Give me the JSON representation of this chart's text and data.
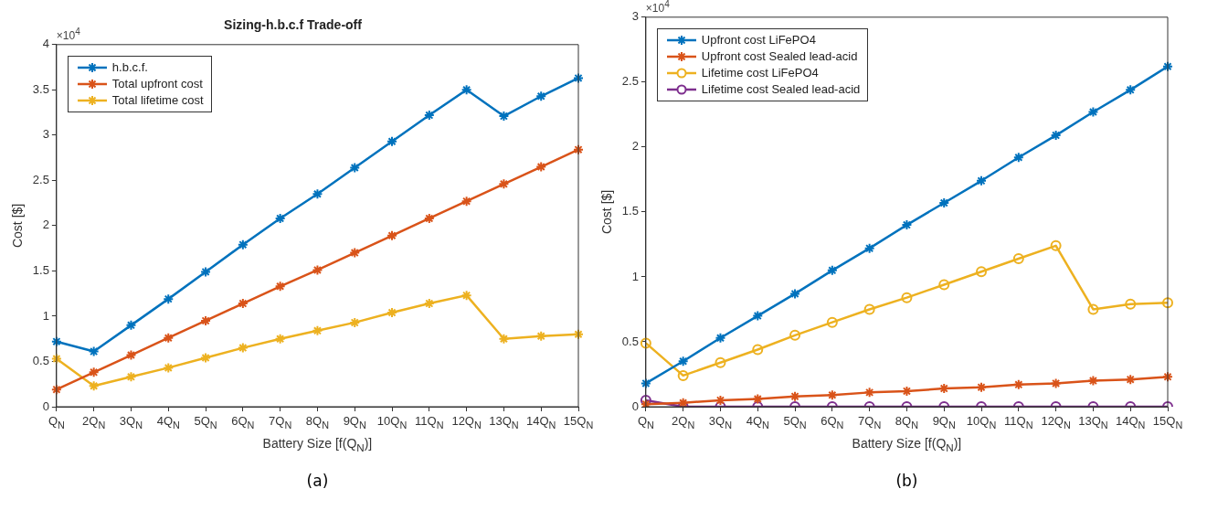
{
  "chart_data": [
    {
      "type": "line",
      "title": "Sizing-h.b.c.f Trade-off",
      "xlabel": "Battery Size [f(Q$_{N}$)]",
      "ylabel": "Cost [$]",
      "categories": [
        "Q$_{N}$",
        "2Q$_{N}$",
        "3Q$_{N}$",
        "4Q$_{N}$",
        "5Q$_{N}$",
        "6Q$_{N}$",
        "7Q$_{N}$",
        "8Q$_{N}$",
        "9Q$_{N}$",
        "10Q$_{N}$",
        "11Q$_{N}$",
        "12Q$_{N}$",
        "13Q$_{N}$",
        "14Q$_{N}$",
        "15Q$_{N}$"
      ],
      "series": [
        {
          "name": "h.b.c.f.",
          "color": "#0072bd",
          "marker": "cross",
          "values": [
            0.72,
            0.61,
            0.9,
            1.19,
            1.49,
            1.79,
            2.08,
            2.35,
            2.64,
            2.93,
            3.22,
            3.5,
            3.21,
            3.43,
            3.63
          ]
        },
        {
          "name": "Total upfront cost",
          "color": "#d95319",
          "marker": "cross",
          "values": [
            0.19,
            0.38,
            0.57,
            0.76,
            0.95,
            1.14,
            1.33,
            1.51,
            1.7,
            1.89,
            2.08,
            2.27,
            2.46,
            2.65,
            2.84
          ]
        },
        {
          "name": "Total lifetime cost",
          "color": "#edb120",
          "marker": "cross",
          "values": [
            0.53,
            0.23,
            0.33,
            0.43,
            0.54,
            0.65,
            0.75,
            0.84,
            0.93,
            1.04,
            1.14,
            1.23,
            0.75,
            0.78,
            0.8
          ]
        }
      ],
      "ylim": [
        0,
        4
      ],
      "yticks": [
        0,
        0.5,
        1,
        1.5,
        2,
        2.5,
        3,
        3.5,
        4
      ],
      "grid": false,
      "legend": "top left",
      "line_style": "solid",
      "annotations": [
        "×10$^{4}$",
        "(a)"
      ]
    },
    {
      "type": "line",
      "xlabel": "Battery Size [f(Q$_{N}$)]",
      "ylabel": "Cost [$]",
      "categories": [
        "Q$_{N}$",
        "2Q$_{N}$",
        "3Q$_{N}$",
        "4Q$_{N}$",
        "5Q$_{N}$",
        "6Q$_{N}$",
        "7Q$_{N}$",
        "8Q$_{N}$",
        "9Q$_{N}$",
        "10Q$_{N}$",
        "11Q$_{N}$",
        "12Q$_{N}$",
        "13Q$_{N}$",
        "14Q$_{N}$",
        "15Q$_{N}$"
      ],
      "series": [
        {
          "name": "Upfront cost LiFePO4",
          "color": "#0072bd",
          "marker": "cross",
          "values": [
            0.18,
            0.35,
            0.53,
            0.7,
            0.87,
            1.05,
            1.22,
            1.4,
            1.57,
            1.74,
            1.92,
            2.09,
            2.27,
            2.44,
            2.62
          ]
        },
        {
          "name": "Upfront cost Sealed lead-acid",
          "color": "#d95319",
          "marker": "cross",
          "values": [
            0.02,
            0.03,
            0.05,
            0.06,
            0.08,
            0.09,
            0.11,
            0.12,
            0.14,
            0.15,
            0.17,
            0.18,
            0.2,
            0.21,
            0.23
          ]
        },
        {
          "name": "Lifetime cost LiFePO4",
          "color": "#edb120",
          "marker": "circle",
          "values": [
            0.49,
            0.24,
            0.34,
            0.44,
            0.55,
            0.65,
            0.75,
            0.84,
            0.94,
            1.04,
            1.14,
            1.24,
            0.75,
            0.79,
            0.8
          ]
        },
        {
          "name": "Lifetime cost Sealed lead-acid",
          "color": "#7e2f8e",
          "marker": "circle",
          "values": [
            0.05,
            0,
            0,
            0,
            0,
            0,
            0,
            0,
            0,
            0,
            0,
            0,
            0,
            0,
            0
          ]
        }
      ],
      "ylim": [
        0,
        3
      ],
      "yticks": [
        0,
        0.5,
        1,
        1.5,
        2,
        2.5,
        3
      ],
      "grid": false,
      "legend": "top left",
      "line_style": "solid",
      "annotations": [
        "×10$^{4}$",
        "(b)"
      ]
    }
  ]
}
